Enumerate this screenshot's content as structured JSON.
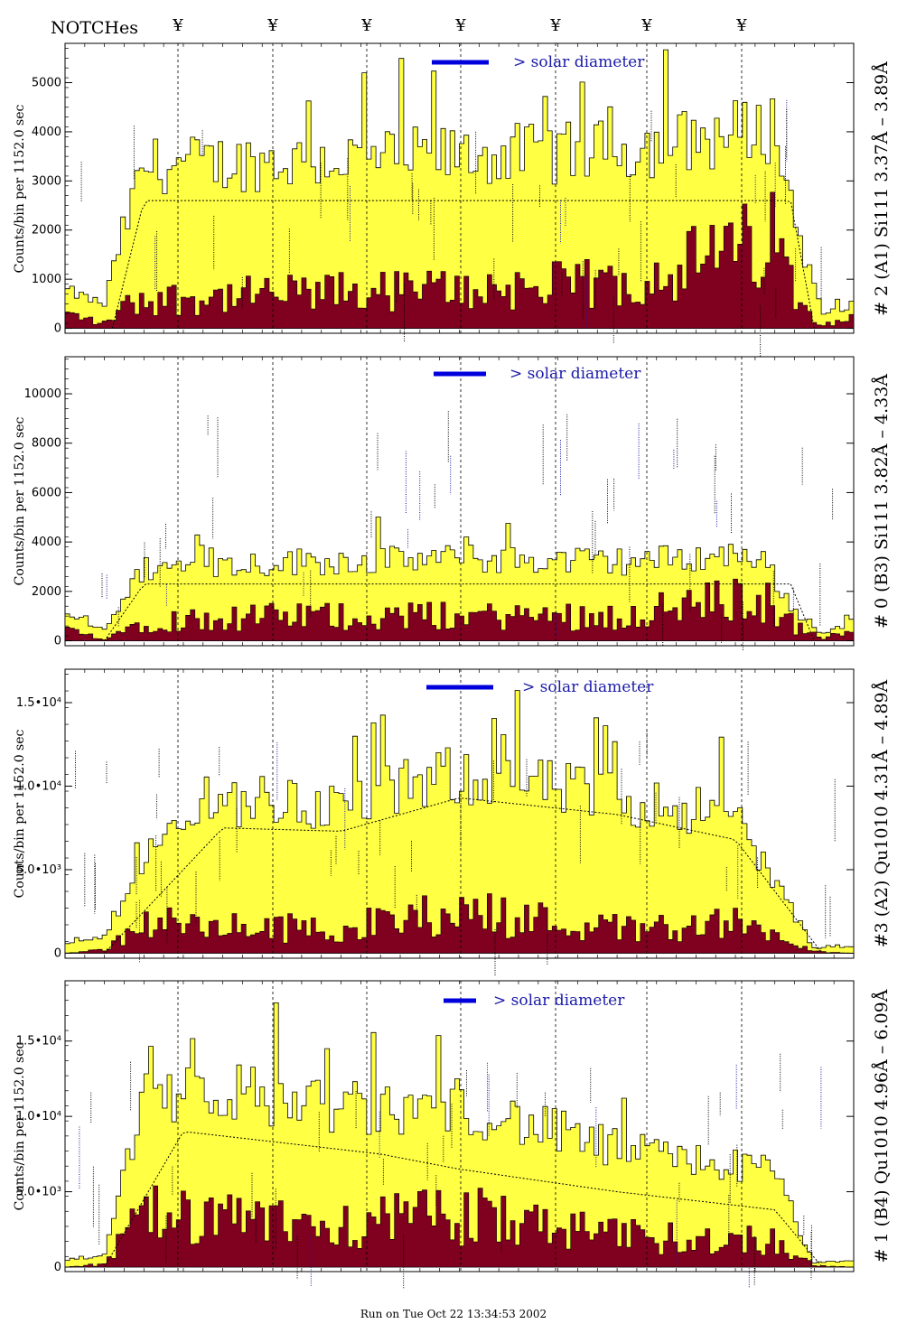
{
  "header": {
    "notches_label": "NOTCHes",
    "notch_symbol": "¥"
  },
  "footer": {
    "run_label": "Run on Tue Oct 22 13:34:53 2002"
  },
  "colors": {
    "counts_fill": "#ffff44",
    "background_fill": "#800020",
    "solar_bar": "#0000dd"
  },
  "chart_data": [
    {
      "type": "area",
      "ylabel": "Counts/bin per   1152.0 sec",
      "right_label": "# 2 (A1) Si111  3.37Å – 3.89Å",
      "solar_label": "> solar diameter",
      "yticks": [
        0,
        1000,
        2000,
        3000,
        4000,
        5000
      ],
      "ytick_labels": [
        "0",
        "1000",
        "2000",
        "3000",
        "4000",
        "5000"
      ],
      "ylim": [
        -100,
        5800
      ],
      "series": [
        {
          "x": [
            0,
            0.05,
            0.07,
            0.1,
            0.3,
            0.5,
            0.7,
            0.9,
            0.93,
            0.96,
            1
          ],
          "values": [
            800,
            500,
            1800,
            3400,
            3500,
            3600,
            3700,
            4200,
            2000,
            300,
            500
          ]
        },
        {
          "x": [
            0,
            0.05,
            0.07,
            0.1,
            0.3,
            0.5,
            0.7,
            0.9,
            0.93,
            0.96,
            1
          ],
          "values": [
            300,
            100,
            400,
            600,
            700,
            800,
            900,
            1800,
            600,
            100,
            200
          ]
        },
        {
          "x": [
            0.06,
            0.1,
            0.5,
            0.92,
            0.95
          ],
          "values": [
            0,
            2600,
            2600,
            2600,
            0
          ]
        }
      ]
    },
    {
      "type": "area",
      "ylabel": "Counts/bin per   1152.0 sec",
      "right_label": "# 0 (B3) Si111  3.82Å – 4.33Å",
      "solar_label": "> solar diameter",
      "yticks": [
        0,
        2000,
        4000,
        6000,
        8000,
        10000
      ],
      "ytick_labels": [
        "0",
        "2000",
        "4000",
        "6000",
        "8000",
        "10000"
      ],
      "ylim": [
        -200,
        11500
      ],
      "series": [
        {
          "x": [
            0,
            0.05,
            0.1,
            0.3,
            0.5,
            0.7,
            0.88,
            0.93,
            0.96,
            1
          ],
          "values": [
            1000,
            500,
            3000,
            3300,
            3400,
            3300,
            3600,
            1000,
            300,
            800
          ]
        },
        {
          "x": [
            0,
            0.05,
            0.1,
            0.3,
            0.5,
            0.7,
            0.88,
            0.93,
            0.96,
            1
          ],
          "values": [
            400,
            100,
            800,
            1000,
            1000,
            1000,
            1800,
            500,
            100,
            400
          ]
        },
        {
          "x": [
            0.05,
            0.1,
            0.5,
            0.92,
            0.95
          ],
          "values": [
            0,
            2300,
            2300,
            2300,
            0
          ]
        }
      ]
    },
    {
      "type": "area",
      "ylabel": "Counts/bin per   1152.0 sec",
      "right_label": "#3 (A2) Qu1010  4.31Å – 4.89Å",
      "solar_label": "> solar diameter",
      "yticks": [
        0,
        5000,
        10000,
        15000
      ],
      "ytick_labels": [
        "0",
        "5.0•10³",
        "1.0•10⁴",
        "1.5•10⁴"
      ],
      "ylim": [
        -300,
        17000
      ],
      "series": [
        {
          "x": [
            0,
            0.05,
            0.1,
            0.2,
            0.35,
            0.5,
            0.7,
            0.85,
            0.95,
            1
          ],
          "values": [
            500,
            1000,
            6000,
            9500,
            9000,
            11000,
            9500,
            8500,
            300,
            400
          ]
        },
        {
          "x": [
            0,
            0.05,
            0.1,
            0.2,
            0.35,
            0.5,
            0.7,
            0.85,
            0.95,
            1
          ],
          "values": [
            0,
            200,
            1800,
            1500,
            1500,
            2500,
            1500,
            1800,
            100,
            0
          ]
        },
        {
          "x": [
            0.05,
            0.2,
            0.35,
            0.5,
            0.7,
            0.85,
            0.96
          ],
          "values": [
            0,
            7500,
            7300,
            9300,
            8300,
            6800,
            0
          ]
        }
      ]
    },
    {
      "type": "area",
      "ylabel": "Counts/bin per   1152.0 sec",
      "right_label": "# 1 (B4) Qu1010 4.96Å – 6.09Å",
      "solar_label": "> solar diameter",
      "yticks": [
        0,
        5000,
        10000,
        15000
      ],
      "ytick_labels": [
        "0",
        "5.0•10³",
        "1.0•10⁴",
        "1.5•10⁴"
      ],
      "ylim": [
        -300,
        19000
      ],
      "series": [
        {
          "x": [
            0,
            0.05,
            0.1,
            0.2,
            0.4,
            0.5,
            0.7,
            0.9,
            0.95,
            1
          ],
          "values": [
            500,
            800,
            12000,
            12000,
            10500,
            11000,
            8000,
            6500,
            300,
            400
          ]
        },
        {
          "x": [
            0,
            0.05,
            0.1,
            0.2,
            0.4,
            0.5,
            0.7,
            0.9,
            0.95,
            1
          ],
          "values": [
            0,
            200,
            3500,
            3000,
            3000,
            3500,
            2000,
            1800,
            100,
            0
          ]
        },
        {
          "x": [
            0.05,
            0.15,
            0.4,
            0.5,
            0.7,
            0.9,
            0.96
          ],
          "values": [
            0,
            9000,
            7500,
            6500,
            5000,
            3800,
            0
          ]
        }
      ]
    }
  ]
}
